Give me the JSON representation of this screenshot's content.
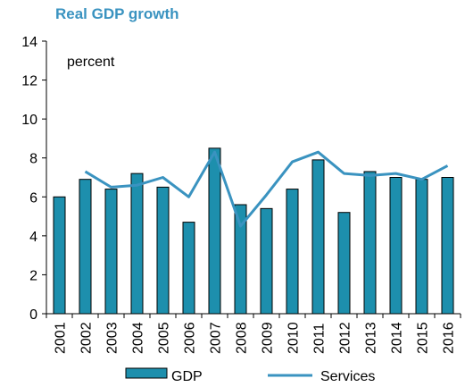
{
  "chart_data": {
    "type": "bar",
    "title": "Real GDP growth",
    "annotation": "percent",
    "categories": [
      "2001",
      "2002",
      "2003",
      "2004",
      "2005",
      "2006",
      "2007",
      "2008",
      "2009",
      "2010",
      "2011",
      "2012",
      "2013",
      "2014",
      "2015",
      "2016"
    ],
    "series": [
      {
        "name": "GDP",
        "type": "bar",
        "color": "#1d8fad",
        "values": [
          6.0,
          6.9,
          6.4,
          7.2,
          6.5,
          4.7,
          8.5,
          5.6,
          5.4,
          6.4,
          7.9,
          5.2,
          7.3,
          7.0,
          6.9,
          7.0
        ]
      },
      {
        "name": "Services",
        "type": "line",
        "color": "#3a93c0",
        "values": [
          null,
          7.3,
          6.5,
          6.6,
          7.0,
          6.0,
          8.3,
          4.5,
          6.1,
          7.8,
          8.3,
          7.2,
          7.1,
          7.2,
          6.9,
          7.6
        ]
      }
    ],
    "yticks": [
      "0",
      "2",
      "4",
      "6",
      "8",
      "10",
      "12",
      "14"
    ],
    "ylim": [
      0,
      14
    ],
    "grid": false,
    "legend_position": "bottom"
  }
}
